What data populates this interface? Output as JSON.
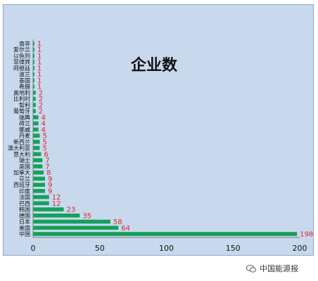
{
  "chart_data": {
    "type": "bar",
    "orientation": "horizontal",
    "title": "企业数",
    "categories": [
      "中国",
      "美国",
      "日本",
      "德国",
      "韩国",
      "巴西",
      "法国",
      "印度",
      "西班牙",
      "芬兰",
      "加拿大",
      "英国",
      "瑞士",
      "意大利",
      "澳大利亚",
      "新西兰",
      "丹麦",
      "挪威",
      "荷兰",
      "瑞典",
      "葡萄牙",
      "智利",
      "比利时",
      "奥地利",
      "希腊",
      "泰国",
      "波兰",
      "阿根廷",
      "菲律宾",
      "以色列",
      "爱尔兰",
      "南非"
    ],
    "values": [
      198,
      64,
      58,
      35,
      23,
      12,
      12,
      9,
      9,
      9,
      8,
      7,
      7,
      6,
      5,
      5,
      5,
      4,
      4,
      4,
      2,
      2,
      2,
      2,
      1,
      1,
      1,
      1,
      1,
      1,
      1,
      1
    ],
    "xlim": [
      0,
      200
    ],
    "xticks": [
      "0",
      "50",
      "100",
      "150",
      "200"
    ],
    "bar_color": "#16a05a",
    "label_color": "#e0242c",
    "grid": false,
    "legend": "none"
  },
  "watermark": {
    "text": "中国能源报",
    "icon": "wechat-icon"
  }
}
